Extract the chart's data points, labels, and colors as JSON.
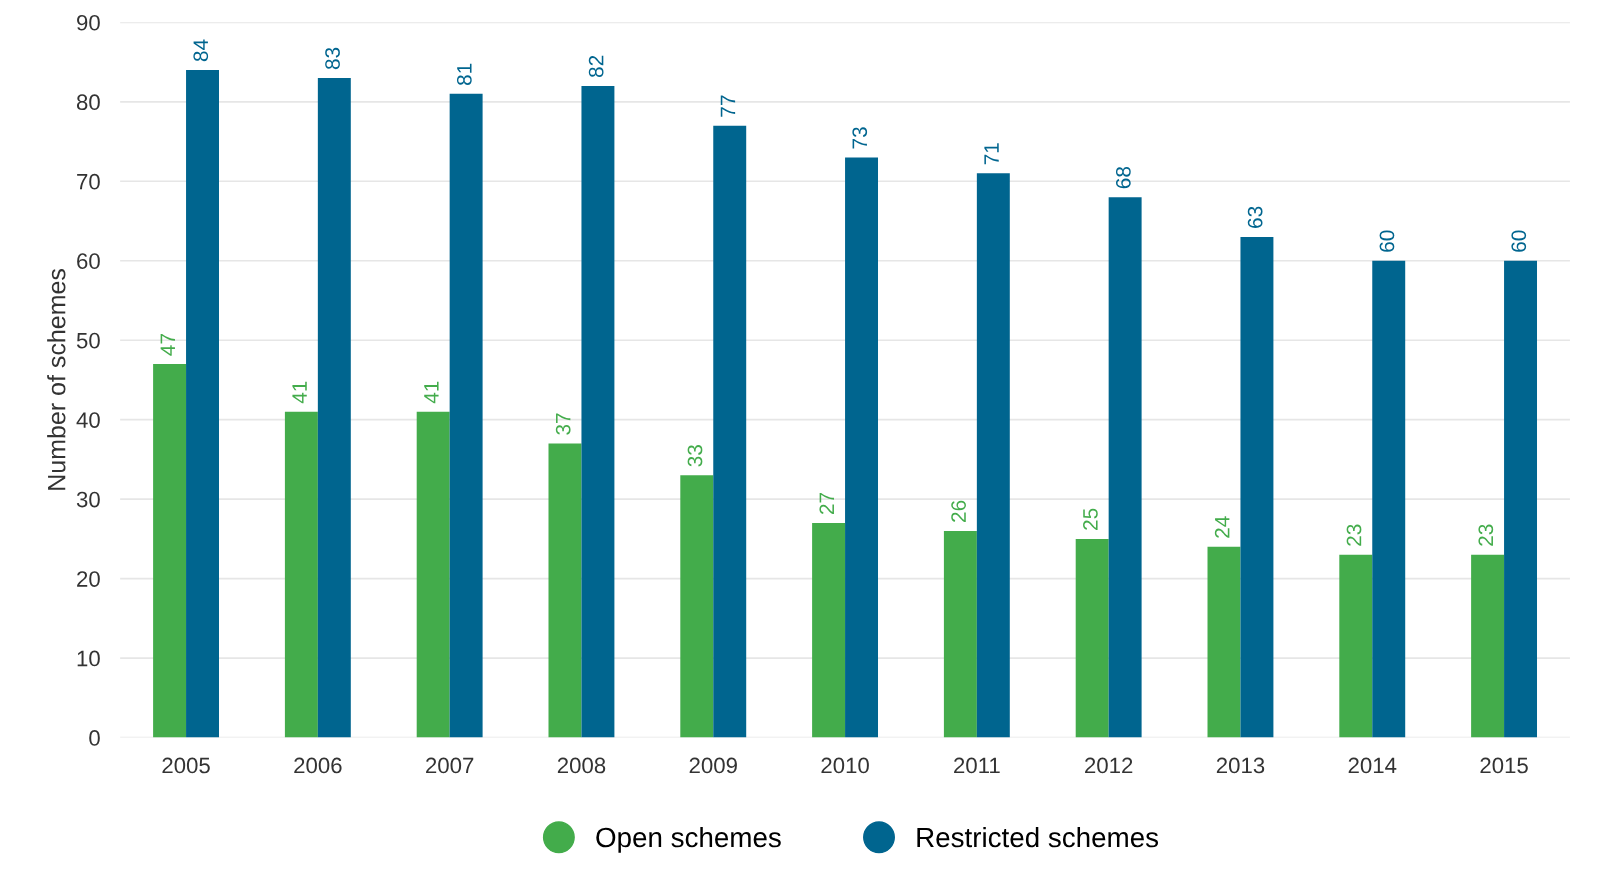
{
  "chart_data": {
    "type": "bar",
    "ylabel": "Number of schemes",
    "categories": [
      "2005",
      "2006",
      "2007",
      "2008",
      "2009",
      "2010",
      "2011",
      "2012",
      "2013",
      "2014",
      "2015"
    ],
    "series": [
      {
        "name": "Open schemes",
        "color": "#43ac4b",
        "values": [
          47,
          41,
          41,
          37,
          33,
          27,
          26,
          25,
          24,
          23,
          23
        ]
      },
      {
        "name": "Restricted schemes",
        "color": "#00658f",
        "values": [
          84,
          83,
          81,
          82,
          77,
          73,
          71,
          68,
          63,
          60,
          60
        ]
      }
    ],
    "ylim": [
      0,
      90
    ],
    "yticks": [
      0,
      10,
      20,
      30,
      40,
      50,
      60,
      70,
      80,
      90
    ],
    "grid": "y",
    "legend": "bottom",
    "data_labels": true
  }
}
